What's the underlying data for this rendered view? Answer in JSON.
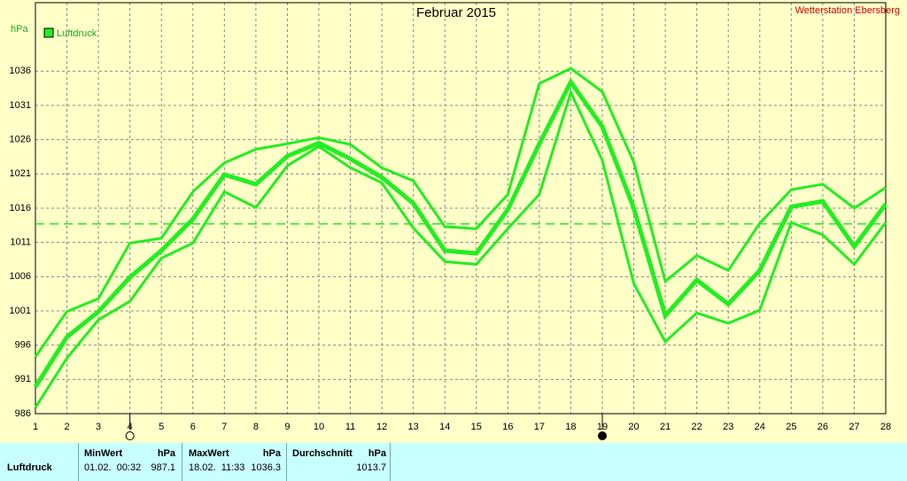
{
  "chart_data": {
    "type": "line",
    "title": "Februar 2015",
    "station": "Wetterstation Ebersberg",
    "y_unit": "hPa",
    "x": [
      1,
      2,
      3,
      4,
      5,
      6,
      7,
      8,
      9,
      10,
      11,
      12,
      13,
      14,
      15,
      16,
      17,
      18,
      19,
      20,
      21,
      22,
      23,
      24,
      25,
      26,
      27,
      28
    ],
    "xlim": [
      1,
      28
    ],
    "xticks": [
      1,
      2,
      3,
      4,
      5,
      6,
      7,
      8,
      9,
      10,
      11,
      12,
      13,
      14,
      15,
      16,
      17,
      18,
      19,
      20,
      21,
      22,
      23,
      24,
      25,
      26,
      27,
      28
    ],
    "ylim": [
      986,
      1046
    ],
    "yticks": [
      986,
      991,
      996,
      1001,
      1006,
      1011,
      1016,
      1021,
      1026,
      1031,
      1036
    ],
    "grid": true,
    "average": 1013.7,
    "full_moon_x": 4,
    "new_moon_x": 19,
    "series": [
      {
        "name": "Luftdruck",
        "color": "#22ee22",
        "values": [
          989.9,
          997.2,
          1000.9,
          1005.9,
          1009.8,
          1014.4,
          1020.9,
          1019.5,
          1023.6,
          1025.5,
          1023.2,
          1020.5,
          1016.7,
          1009.8,
          1009.4,
          1015.8,
          1025.4,
          1034.4,
          1027.9,
          1016,
          1000.3,
          1005.5,
          1002,
          1006.9,
          1016.2,
          1017,
          1010.4,
          1016.6
        ],
        "max": [
          994.3,
          1000.9,
          1002.8,
          1010.9,
          1011.6,
          1018.4,
          1022.6,
          1024.6,
          1025.4,
          1026.3,
          1025.3,
          1021.9,
          1020,
          1013.3,
          1013,
          1018,
          1034.2,
          1036.4,
          1033,
          1022.7,
          1005.3,
          1009.1,
          1006.9,
          1013.8,
          1018.7,
          1019.5,
          1016,
          1019
        ],
        "min": [
          986.9,
          994.1,
          999.7,
          1002.4,
          1008.7,
          1010.9,
          1018.4,
          1016.1,
          1022.2,
          1025,
          1021.9,
          1019.7,
          1013.1,
          1008.2,
          1007.8,
          1013,
          1018,
          1032.9,
          1023,
          1005,
          996.5,
          1000.7,
          999.2,
          1001.1,
          1013.9,
          1012.1,
          1007.8,
          1013.9
        ]
      }
    ]
  },
  "table": {
    "header": [
      "MinWert",
      "hPa",
      "MaxWert",
      "hPa",
      "Durchschnitt",
      "hPa"
    ],
    "rows": [
      [
        "Luftdruck",
        "01.02.  00:32",
        "987.1",
        "18.02.  11:33",
        "1036.3",
        "1013.7"
      ]
    ]
  }
}
